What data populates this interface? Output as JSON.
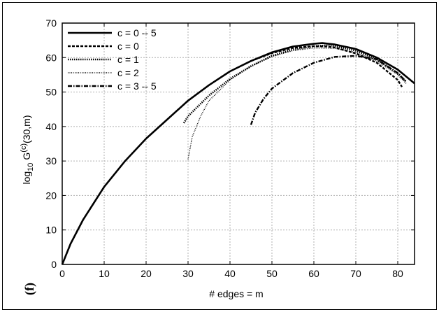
{
  "chart_data": {
    "type": "line",
    "panel_label": "(f)",
    "xlabel": "# edges = m",
    "ylabel_main": "log",
    "ylabel_sub": "10",
    "ylabel_mid": " G",
    "ylabel_sup": "(c)",
    "ylabel_tail": "(30,m)",
    "xlim": [
      0,
      84
    ],
    "ylim": [
      0,
      70
    ],
    "xticks": [
      "0",
      "10",
      "20",
      "30",
      "40",
      "50",
      "60",
      "70",
      "80"
    ],
    "yticks": [
      "0",
      "10",
      "20",
      "30",
      "40",
      "50",
      "60",
      "70"
    ],
    "grid": true,
    "legend_position": "top-left",
    "series": [
      {
        "name": "c = 0 -- 5",
        "style": "solid",
        "x": [
          0,
          2,
          5,
          10,
          15,
          20,
          25,
          30,
          35,
          40,
          45,
          50,
          55,
          60,
          62,
          65,
          70,
          75,
          80,
          84
        ],
        "y": [
          0,
          6,
          13,
          22.5,
          30,
          36.5,
          42,
          47.5,
          52,
          56,
          59,
          61.5,
          63.2,
          64,
          64.2,
          63.8,
          62.5,
          60,
          56.5,
          52.5
        ]
      },
      {
        "name": "c = 0",
        "style": "dashed",
        "x": [
          45,
          50,
          55,
          60,
          63,
          65,
          70,
          75,
          80,
          81
        ],
        "y": [
          59,
          61.3,
          62.8,
          63.3,
          63.2,
          62.9,
          61.2,
          58.5,
          53.5,
          51.5
        ]
      },
      {
        "name": "c = 1",
        "style": "dotted",
        "x": [
          29,
          30,
          35,
          40,
          45,
          50,
          55,
          60,
          63,
          65,
          70,
          75,
          80,
          82
        ],
        "y": [
          41,
          43,
          49,
          53.8,
          57.5,
          60.5,
          62.3,
          63.3,
          63.5,
          63.3,
          62,
          59.5,
          55.5,
          53
        ]
      },
      {
        "name": "c = 2",
        "style": "fine-dotted",
        "x": [
          30,
          31,
          33,
          35,
          40,
          45,
          50,
          55,
          60,
          65,
          70,
          75,
          80,
          82
        ],
        "y": [
          30.5,
          37,
          43,
          47.5,
          53.5,
          57.5,
          60.3,
          62,
          62.8,
          62.7,
          61.5,
          59,
          55,
          52.5
        ]
      },
      {
        "name": "c = 3 -- 5",
        "style": "dash-dot",
        "x": [
          45,
          46,
          48,
          50,
          55,
          60,
          65,
          70,
          75,
          80,
          82
        ],
        "y": [
          40.5,
          44,
          48,
          51,
          55.5,
          58.5,
          60.2,
          60.5,
          59.5,
          55.5,
          53
        ]
      }
    ]
  }
}
